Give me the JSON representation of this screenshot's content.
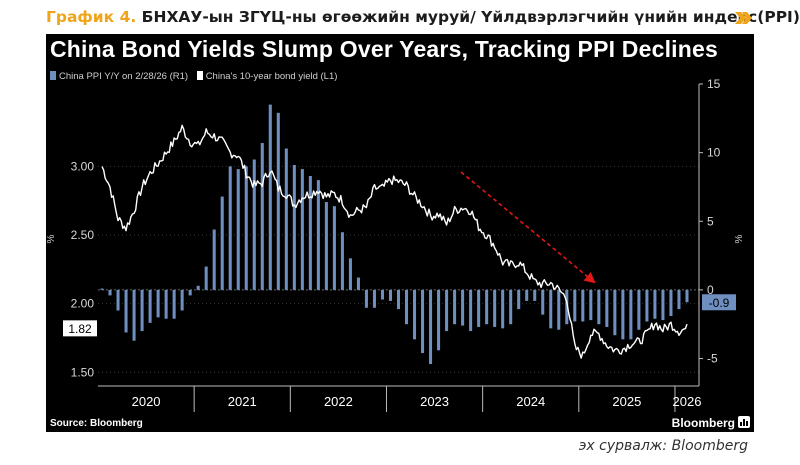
{
  "caption": {
    "label": "График 4.",
    "text": "БНХАУ-ын ЗГҮЦ-ны өгөөжийн муруй/ Үйлдвэрлэгчийн үнийн индекс(PPI)"
  },
  "colors": {
    "accent": "#f0a419",
    "background": "#000000",
    "ppi_bar": "#6e8fbf",
    "yield_line": "#ffffff",
    "trend_arrow": "#e01818"
  },
  "source_note": "эх сурвалж: Bloomberg",
  "chart_data": {
    "type": "bar+line",
    "title": "China Bond Yields Slump Over Years, Tracking PPI Declines",
    "legend": [
      "China PPI Y/Y on 2/28/26 (R1)",
      "China's 10-year bond yield (L1)"
    ],
    "x_categories": [
      "2020",
      "2021",
      "2022",
      "2023",
      "2024",
      "2025",
      "2026"
    ],
    "left_axis": {
      "unit": "%",
      "range": [
        1.4,
        3.6
      ],
      "ticks": [
        "3.00",
        "2.50",
        "2.00",
        "1.50"
      ]
    },
    "right_axis": {
      "unit": "%",
      "range": [
        -7,
        15
      ],
      "ticks": [
        "15",
        "10",
        "5",
        "0",
        "-5"
      ]
    },
    "current_labels": {
      "yield": "1.82",
      "ppi": "-0.9"
    },
    "series": [
      {
        "name": "China PPI Y/Y",
        "axis": "right",
        "type": "bar",
        "start": "2020-01",
        "values": [
          0.1,
          -0.4,
          -1.5,
          -3.1,
          -3.7,
          -3.0,
          -2.4,
          -2.0,
          -2.1,
          -2.1,
          -1.5,
          -0.4,
          0.3,
          1.7,
          4.4,
          6.8,
          9.0,
          8.8,
          9.0,
          9.5,
          10.7,
          13.5,
          12.9,
          10.3,
          9.1,
          8.8,
          8.3,
          8.0,
          6.4,
          6.1,
          4.2,
          2.3,
          0.9,
          -1.3,
          -1.3,
          -0.7,
          -0.8,
          -1.4,
          -2.5,
          -3.6,
          -4.6,
          -5.4,
          -4.4,
          -3.0,
          -2.5,
          -2.6,
          -3.0,
          -2.7,
          -2.5,
          -2.7,
          -2.8,
          -2.5,
          -1.4,
          -0.8,
          -0.8,
          -1.8,
          -2.8,
          -2.9,
          -2.5,
          -2.3,
          -2.3,
          -2.2,
          -2.5,
          -2.7,
          -3.3,
          -3.6,
          -3.6,
          -2.9,
          -2.3,
          -2.1,
          -2.2,
          -1.9,
          -1.4,
          -0.9
        ]
      },
      {
        "name": "China's 10-year bond yield",
        "axis": "left",
        "type": "line",
        "start": "2020-01",
        "values": [
          3.0,
          2.85,
          2.62,
          2.55,
          2.68,
          2.85,
          2.95,
          3.02,
          3.1,
          3.18,
          3.28,
          3.18,
          3.15,
          3.25,
          3.22,
          3.18,
          3.1,
          3.08,
          2.95,
          2.86,
          2.88,
          2.98,
          2.84,
          2.8,
          2.72,
          2.78,
          2.8,
          2.83,
          2.78,
          2.8,
          2.75,
          2.64,
          2.68,
          2.7,
          2.84,
          2.84,
          2.9,
          2.89,
          2.86,
          2.78,
          2.72,
          2.64,
          2.65,
          2.58,
          2.68,
          2.7,
          2.68,
          2.56,
          2.5,
          2.42,
          2.3,
          2.28,
          2.3,
          2.23,
          2.16,
          2.14,
          2.15,
          2.1,
          2.04,
          1.68,
          1.62,
          1.78,
          1.78,
          1.7,
          1.66,
          1.67,
          1.71,
          1.72,
          1.78,
          1.86,
          1.81,
          1.85,
          1.8,
          1.82
        ]
      }
    ],
    "annotation": "trend arrow",
    "footer_source": "Source: Bloomberg",
    "footer_brand": "Bloomberg"
  }
}
